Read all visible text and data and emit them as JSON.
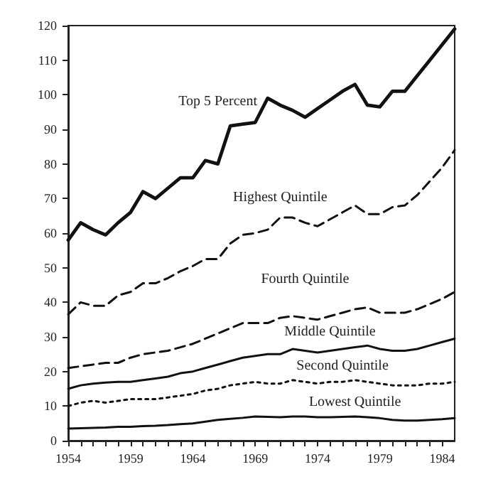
{
  "chart_data": {
    "type": "line",
    "x": [
      1954,
      1955,
      1956,
      1957,
      1958,
      1959,
      1960,
      1961,
      1962,
      1963,
      1964,
      1965,
      1966,
      1967,
      1968,
      1969,
      1970,
      1971,
      1972,
      1973,
      1974,
      1975,
      1976,
      1977,
      1978,
      1979,
      1980,
      1981,
      1982,
      1983,
      1984,
      1985
    ],
    "series": [
      {
        "name": "Top 5 Percent",
        "color": "#111111",
        "line_style": "solid",
        "values": [
          58,
          63,
          61,
          59.5,
          63,
          66,
          72,
          70,
          73,
          76,
          76,
          81,
          80,
          91,
          91.5,
          92,
          99,
          97,
          95.5,
          93.5,
          96,
          98.5,
          101,
          103,
          97,
          96.5,
          101,
          101,
          105.5,
          110,
          114.5,
          119
        ]
      },
      {
        "name": "Highest Quintile",
        "color": "#111111",
        "line_style": "dashed",
        "values": [
          36.5,
          40,
          39,
          39,
          42,
          43,
          45.5,
          45.5,
          47,
          49,
          50.5,
          52.5,
          52.5,
          57,
          59.5,
          60,
          61,
          64.5,
          64.5,
          63,
          62,
          64,
          66,
          68,
          65.5,
          65.5,
          67.5,
          68,
          71,
          75,
          79,
          84
        ]
      },
      {
        "name": "Fourth Quintile",
        "color": "#111111",
        "line_style": "dashed",
        "values": [
          21,
          21.5,
          22,
          22.5,
          22.5,
          24,
          25,
          25.5,
          26,
          27,
          28,
          29.5,
          31,
          32.5,
          34,
          34,
          34,
          35.5,
          36,
          35.5,
          35,
          36,
          37,
          38,
          38.5,
          37,
          37,
          37,
          38,
          39.5,
          41,
          43
        ]
      },
      {
        "name": "Middle Quintile",
        "color": "#111111",
        "line_style": "solid",
        "values": [
          15,
          16,
          16.5,
          16.8,
          17,
          17,
          17.5,
          18,
          18.5,
          19.5,
          20,
          21,
          22,
          23,
          24,
          24.5,
          25,
          25,
          26.5,
          26,
          25.5,
          26,
          26.5,
          27,
          27.5,
          26.5,
          26,
          26,
          26.5,
          27.5,
          28.5,
          29.5
        ]
      },
      {
        "name": "Second Quintile",
        "color": "#111111",
        "line_style": "dotted",
        "values": [
          10,
          11,
          11.5,
          11,
          11.5,
          12,
          12,
          12,
          12.5,
          13,
          13.5,
          14.5,
          15,
          16,
          16.5,
          17,
          16.5,
          16.5,
          17.5,
          17,
          16.5,
          17,
          17,
          17.5,
          17,
          16.5,
          16,
          16,
          16,
          16.5,
          16.5,
          17
        ]
      },
      {
        "name": "Lowest Quintile",
        "color": "#111111",
        "line_style": "solid",
        "values": [
          3.5,
          3.6,
          3.7,
          3.8,
          4,
          4,
          4.2,
          4.3,
          4.5,
          4.8,
          5,
          5.5,
          6,
          6.3,
          6.6,
          7,
          6.9,
          6.8,
          7,
          7,
          6.8,
          6.8,
          6.9,
          7,
          6.8,
          6.5,
          6,
          5.8,
          5.8,
          6,
          6.2,
          6.5
        ]
      }
    ],
    "xlim": [
      1954,
      1985
    ],
    "xticks": [
      1954,
      {
        "value": 1955,
        "label": null
      },
      {
        "value": 1956,
        "label": null
      },
      {
        "value": 1957,
        "label": null
      },
      {
        "value": 1958,
        "label": null
      },
      1959,
      {
        "value": 1960,
        "label": null
      },
      {
        "value": 1961,
        "label": null
      },
      {
        "value": 1962,
        "label": null
      },
      {
        "value": 1963,
        "label": null
      },
      1964,
      {
        "value": 1965,
        "label": null
      },
      {
        "value": 1966,
        "label": null
      },
      {
        "value": 1967,
        "label": null
      },
      {
        "value": 1968,
        "label": null
      },
      1969,
      {
        "value": 1970,
        "label": null
      },
      {
        "value": 1971,
        "label": null
      },
      {
        "value": 1972,
        "label": null
      },
      {
        "value": 1973,
        "label": null
      },
      1974,
      {
        "value": 1975,
        "label": null
      },
      {
        "value": 1976,
        "label": null
      },
      {
        "value": 1977,
        "label": null
      },
      {
        "value": 1978,
        "label": null
      },
      1979,
      {
        "value": 1980,
        "label": null
      },
      {
        "value": 1981,
        "label": null
      },
      {
        "value": 1982,
        "label": null
      },
      {
        "value": 1983,
        "label": null
      },
      1984
    ],
    "ylim": [
      0,
      120
    ],
    "yticks": [
      0,
      10,
      20,
      30,
      40,
      50,
      60,
      70,
      80,
      90,
      100,
      110,
      120
    ],
    "grid": false,
    "marker": "none"
  }
}
